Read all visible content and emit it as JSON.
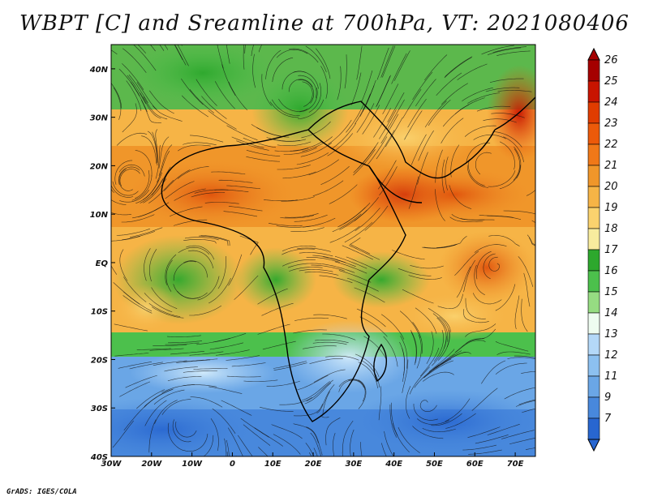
{
  "title": "WBPT [C] and Sreamline at 700hPa, VT: 2021080406",
  "credit": "GrADS: IGES/COLA",
  "map": {
    "lon_range": [
      -30,
      75
    ],
    "lat_range": [
      -40,
      45
    ],
    "x_ticks": [
      "30W",
      "20W",
      "10W",
      "0",
      "10E",
      "20E",
      "30E",
      "40E",
      "50E",
      "60E",
      "70E"
    ],
    "y_ticks": [
      "40N",
      "30N",
      "20N",
      "10N",
      "EQ",
      "10S",
      "20S",
      "30S",
      "40S"
    ],
    "lon_tick_values": [
      -30,
      -20,
      -10,
      0,
      10,
      20,
      30,
      40,
      50,
      60,
      70
    ],
    "lat_tick_values": [
      40,
      30,
      20,
      10,
      0,
      -10,
      -20,
      -30,
      -40
    ]
  },
  "colorbar": {
    "labels": [
      "26",
      "25",
      "24",
      "23",
      "22",
      "21",
      "20",
      "19",
      "18",
      "17",
      "16",
      "15",
      "14",
      "13",
      "12",
      "11",
      "9",
      "7"
    ],
    "colors": [
      "#a50000",
      "#c81400",
      "#e03c00",
      "#ec5a0a",
      "#f07818",
      "#f0962a",
      "#f6b446",
      "#fad26e",
      "#f8ec9e",
      "#2da82d",
      "#4cc04c",
      "#96dc82",
      "#eefcf0",
      "#b4d8f8",
      "#8cc0f0",
      "#6aa6e6",
      "#4888dc",
      "#2866d0"
    ]
  }
}
